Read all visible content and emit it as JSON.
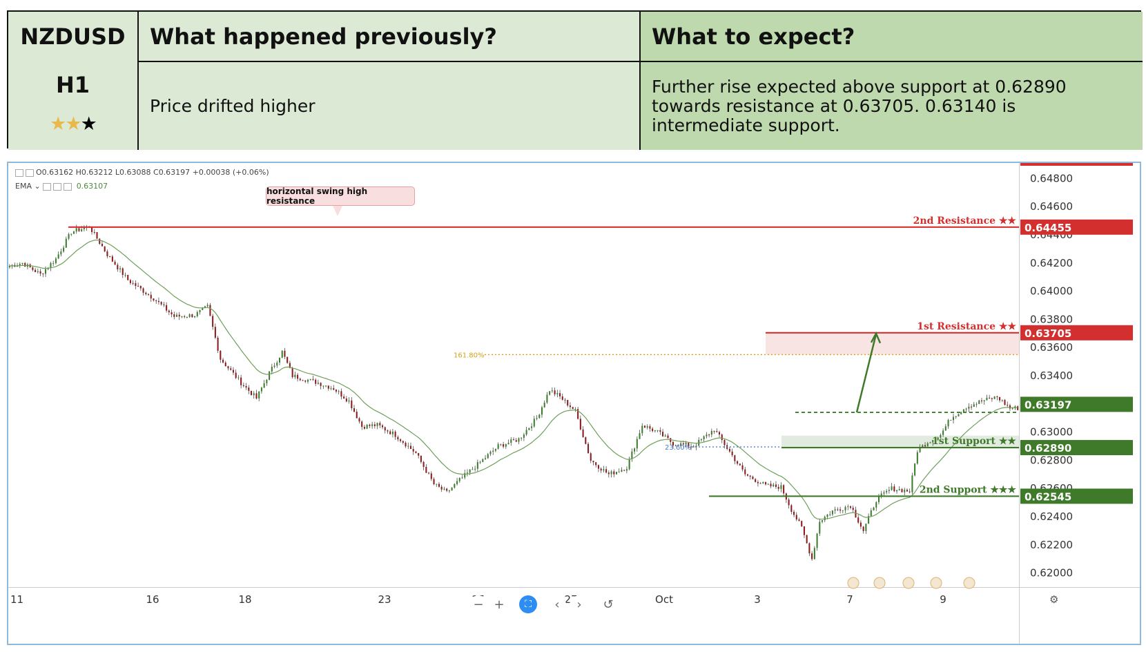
{
  "header": {
    "symbol": "NZDUSD",
    "timeframe": "H1",
    "rating": 2,
    "rating_max": 3,
    "prev_title": "What happened previously?",
    "prev_text": "Price drifted higher",
    "expect_title": "What to expect?",
    "expect_text": "Further rise expected above support at 0.62890 towards resistance at 0.63705. 0.63140 is intermediate support."
  },
  "toolbar": {
    "ohlc": "O0.63162  H0.63212  L0.63088  C0.63197  +0.00038 (+0.06%)",
    "ema_label": "EMA",
    "ema_value": "0.63107",
    "callout": "horizontal swing high resistance",
    "zoom_out": "−",
    "zoom_in": "+",
    "prev": "‹",
    "next": "›",
    "reset": "↺"
  },
  "colors": {
    "resistance": "#d32f2f",
    "support": "#3f7a2a",
    "up": "#3a7d2c",
    "down": "#8b1a1a",
    "ema": "#6f9f5a",
    "fib161": "#d4a017",
    "fib236": "#4a7bd0"
  },
  "chart_data": {
    "type": "candlestick",
    "ylim": [
      0.619,
      0.6491
    ],
    "y_ticks": [
      "0.64800",
      "0.64600",
      "0.64400",
      "0.64200",
      "0.64000",
      "0.63800",
      "0.63600",
      "0.63400",
      "0.63200",
      "0.63000",
      "0.62800",
      "0.62600",
      "0.62400",
      "0.62200",
      "0.62000"
    ],
    "x_ticks": [
      "11",
      "16",
      "18",
      "23",
      "25",
      "27",
      "Oct",
      "3",
      "7",
      "9"
    ],
    "levels": [
      {
        "name": "2nd Resistance ★★",
        "value": 0.64455,
        "label": "0.64455",
        "kind": "resistance"
      },
      {
        "name": "1st Resistance ★★",
        "value": 0.63705,
        "label": "0.63705",
        "kind": "resistance"
      },
      {
        "name": "",
        "value": 0.63197,
        "label": "0.63197",
        "kind": "current"
      },
      {
        "name": "1st Support ★★",
        "value": 0.6289,
        "label": "0.62890",
        "kind": "support"
      },
      {
        "name": "2nd Support ★★★",
        "value": 0.62545,
        "label": "0.62545",
        "kind": "support"
      }
    ],
    "intermediate_support": 0.6314,
    "fib": [
      {
        "label": "161.80%",
        "value": 0.6355
      },
      {
        "label": "23.60%",
        "value": 0.6289
      }
    ],
    "arrow_target": 0.63705,
    "anchors": [
      [
        0,
        0.6418
      ],
      [
        5,
        0.642
      ],
      [
        12,
        0.6412
      ],
      [
        18,
        0.6423
      ],
      [
        24,
        0.6442
      ],
      [
        31,
        0.6446
      ],
      [
        38,
        0.6426
      ],
      [
        46,
        0.6408
      ],
      [
        56,
        0.6395
      ],
      [
        64,
        0.6382
      ],
      [
        72,
        0.6383
      ],
      [
        77,
        0.6389
      ],
      [
        82,
        0.6352
      ],
      [
        90,
        0.6335
      ],
      [
        96,
        0.6324
      ],
      [
        101,
        0.6342
      ],
      [
        106,
        0.6357
      ],
      [
        110,
        0.634
      ],
      [
        120,
        0.6335
      ],
      [
        126,
        0.6331
      ],
      [
        132,
        0.6322
      ],
      [
        137,
        0.6304
      ],
      [
        143,
        0.6305
      ],
      [
        150,
        0.6298
      ],
      [
        158,
        0.6285
      ],
      [
        165,
        0.6263
      ],
      [
        170,
        0.6257
      ],
      [
        175,
        0.6266
      ],
      [
        182,
        0.6277
      ],
      [
        190,
        0.629
      ],
      [
        198,
        0.6295
      ],
      [
        205,
        0.631
      ],
      [
        210,
        0.633
      ],
      [
        214,
        0.6325
      ],
      [
        220,
        0.6315
      ],
      [
        226,
        0.628
      ],
      [
        233,
        0.627
      ],
      [
        240,
        0.6275
      ],
      [
        246,
        0.6305
      ],
      [
        252,
        0.63
      ],
      [
        258,
        0.6292
      ],
      [
        266,
        0.629
      ],
      [
        274,
        0.6302
      ],
      [
        280,
        0.6286
      ],
      [
        286,
        0.627
      ],
      [
        294,
        0.6262
      ],
      [
        300,
        0.6261
      ],
      [
        304,
        0.6245
      ],
      [
        308,
        0.6232
      ],
      [
        312,
        0.621
      ],
      [
        315,
        0.6237
      ],
      [
        320,
        0.6244
      ],
      [
        327,
        0.6248
      ],
      [
        332,
        0.623
      ],
      [
        337,
        0.6252
      ],
      [
        343,
        0.626
      ],
      [
        350,
        0.6258
      ],
      [
        353,
        0.6287
      ],
      [
        357,
        0.6293
      ],
      [
        362,
        0.6298
      ],
      [
        366,
        0.631
      ],
      [
        372,
        0.6318
      ],
      [
        378,
        0.6322
      ],
      [
        384,
        0.6325
      ],
      [
        389,
        0.6317
      ],
      [
        392,
        0.6317
      ]
    ],
    "candle_count": 393
  }
}
